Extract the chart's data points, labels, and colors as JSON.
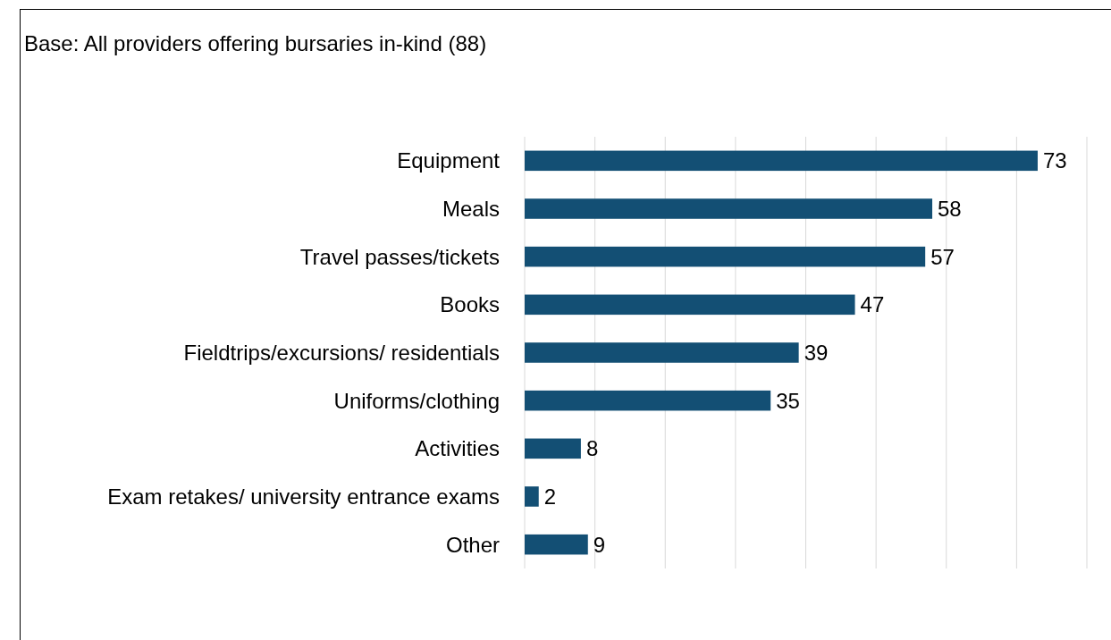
{
  "chart_data": {
    "type": "bar",
    "orientation": "horizontal",
    "title": "Base: All providers offering bursaries in-kind (88)",
    "categories": [
      "Equipment",
      "Meals",
      "Travel passes/tickets",
      "Books",
      "Fieldtrips/excursions/ residentials",
      "Uniforms/clothing",
      "Activities",
      "Exam retakes/ university entrance exams",
      "Other"
    ],
    "values": [
      73,
      58,
      57,
      47,
      39,
      35,
      8,
      2,
      9
    ],
    "color": "#134f74",
    "xlim": [
      0,
      80
    ],
    "xticks": [
      {
        "value": 0,
        "label": null
      },
      {
        "value": 10,
        "label": null
      },
      {
        "value": 20,
        "label": null
      },
      {
        "value": 30,
        "label": null
      },
      {
        "value": 40,
        "label": null
      },
      {
        "value": 50,
        "label": null
      },
      {
        "value": 60,
        "label": null
      },
      {
        "value": 70,
        "label": null
      },
      {
        "value": 80,
        "label": null
      }
    ],
    "grid": "x",
    "tick_labels": "y",
    "data_labels": true
  }
}
